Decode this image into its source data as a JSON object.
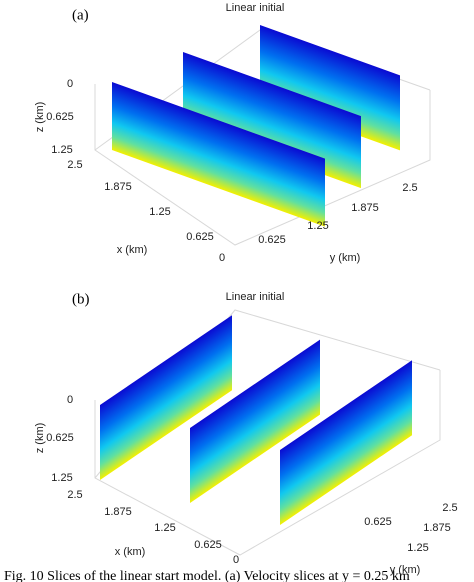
{
  "panels": [
    {
      "label": "(a)",
      "title": "Linear initial",
      "z_label": "z (km)",
      "z_ticks": [
        0,
        0.625,
        1.25
      ],
      "x_label": "x (km)",
      "x_ticks": [
        2.5,
        1.875,
        1.25,
        0.625,
        0
      ],
      "y_label": "y (km)",
      "y_ticks": [
        0.625,
        1.25,
        1.875,
        2.5
      ]
    },
    {
      "label": "(b)",
      "title": "Linear initial",
      "z_label": "z (km)",
      "z_ticks": [
        0,
        0.625,
        1.25
      ],
      "x_label": "x (km)",
      "x_ticks": [
        2.5,
        1.875,
        1.25,
        0.625,
        0
      ],
      "y_label": "y (km)",
      "y_ticks": [
        0.625,
        1.25,
        1.875,
        2.5
      ]
    }
  ],
  "caption": "Fig. 10    Slices of the linear start model. (a) Velocity slices at y = 0.25 km"
}
